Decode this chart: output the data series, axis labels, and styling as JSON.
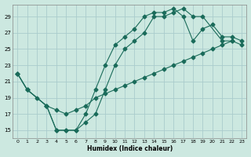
{
  "xlabel": "Humidex (Indice chaleur)",
  "bg_color": "#cce8e0",
  "grid_color": "#aacccc",
  "line_color": "#1a6b5a",
  "xlim": [
    -0.5,
    23.5
  ],
  "ylim": [
    14.0,
    30.5
  ],
  "xticks": [
    0,
    1,
    2,
    3,
    4,
    5,
    6,
    7,
    8,
    9,
    10,
    11,
    12,
    13,
    14,
    15,
    16,
    17,
    18,
    19,
    20,
    21,
    22,
    23
  ],
  "yticks": [
    15,
    17,
    19,
    21,
    23,
    25,
    27,
    29
  ],
  "curve1_x": [
    0,
    1,
    3,
    4,
    5,
    6,
    7,
    8,
    9,
    10,
    11,
    12,
    13,
    14,
    15,
    16,
    17,
    18,
    19,
    21,
    22
  ],
  "curve1_y": [
    22,
    20,
    18,
    15,
    15,
    15,
    16,
    17,
    20,
    23,
    25,
    26,
    27,
    29,
    29,
    29.5,
    30,
    29,
    29,
    26,
    26
  ],
  "curve2_x": [
    0,
    1,
    3,
    4,
    5,
    6,
    7,
    8,
    9,
    10,
    11,
    12,
    13,
    14,
    15,
    16,
    17,
    18,
    19,
    20,
    21,
    22,
    23
  ],
  "curve2_y": [
    22,
    20,
    18,
    15,
    15,
    15,
    17,
    20,
    23,
    25.5,
    26.5,
    27.5,
    29,
    29.5,
    29.5,
    30,
    29,
    26,
    27.5,
    28,
    26.5,
    26.5,
    26
  ],
  "curve3_x": [
    0,
    1,
    2,
    3,
    4,
    5,
    6,
    7,
    8,
    9,
    10,
    11,
    12,
    13,
    14,
    15,
    16,
    17,
    18,
    19,
    20,
    21,
    22,
    23
  ],
  "curve3_y": [
    22,
    20,
    19,
    18,
    17.5,
    17,
    17.5,
    18,
    19,
    19.5,
    20,
    20.5,
    21,
    21.5,
    22,
    22.5,
    23,
    23.5,
    24,
    24.5,
    25,
    25.5,
    26,
    25.5
  ]
}
